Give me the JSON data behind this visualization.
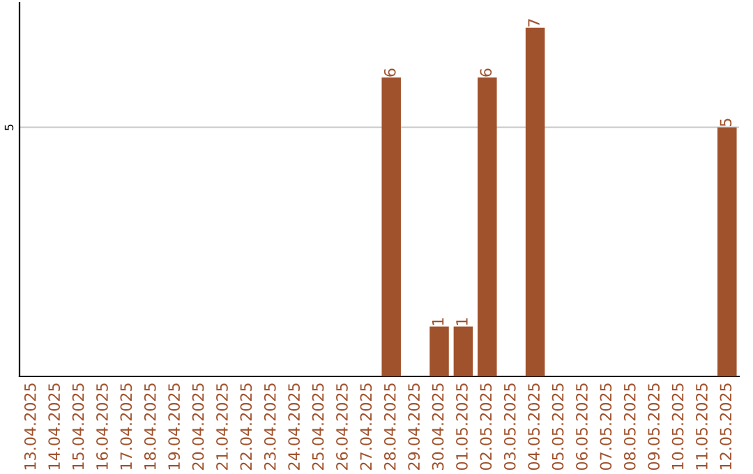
{
  "chart_data": {
    "type": "bar",
    "categories": [
      "13.04.2025",
      "14.04.2025",
      "15.04.2025",
      "16.04.2025",
      "17.04.2025",
      "18.04.2025",
      "19.04.2025",
      "20.04.2025",
      "21.04.2025",
      "22.04.2025",
      "23.04.2025",
      "24.04.2025",
      "25.04.2025",
      "26.04.2025",
      "27.04.2025",
      "28.04.2025",
      "29.04.2025",
      "30.04.2025",
      "01.05.2025",
      "02.05.2025",
      "03.05.2025",
      "04.05.2025",
      "05.05.2025",
      "06.05.2025",
      "07.05.2025",
      "08.05.2025",
      "09.05.2025",
      "10.05.2025",
      "11.05.2025",
      "12.05.2025"
    ],
    "values": [
      null,
      null,
      null,
      null,
      null,
      null,
      null,
      null,
      null,
      null,
      null,
      null,
      null,
      null,
      null,
      6,
      null,
      1,
      1,
      6,
      null,
      7,
      null,
      null,
      null,
      null,
      null,
      null,
      null,
      5
    ],
    "data_labels": true,
    "color": "#a0522d",
    "ylim": [
      0,
      7.5
    ],
    "yticks": [
      5
    ],
    "grid": "y"
  }
}
